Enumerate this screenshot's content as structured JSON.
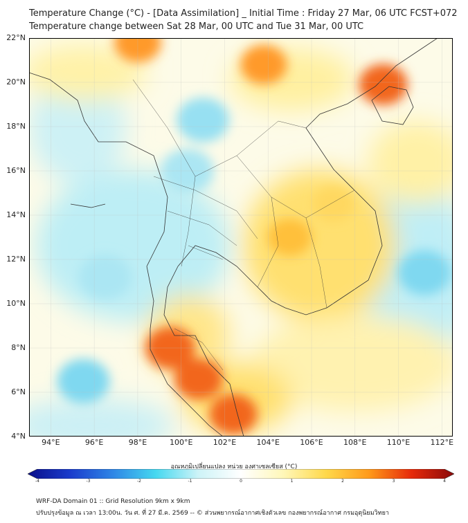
{
  "header": {
    "title_line1": "Temperature Change (°C) - [Data Assimilation] _ Initial Time : Friday 27 Mar, 06 UTC FCST+072",
    "title_line2": "Temperature change between Sat 28 Mar, 00 UTC and Tue 31 Mar, 00 UTC"
  },
  "map": {
    "lat_labels": [
      "22°N",
      "20°N",
      "18°N",
      "16°N",
      "14°N",
      "12°N",
      "10°N",
      "8°N",
      "6°N",
      "4°N"
    ],
    "lon_labels": [
      "94°E",
      "96°E",
      "98°E",
      "100°E",
      "102°E",
      "104°E",
      "106°E",
      "108°E",
      "110°E",
      "112°E"
    ],
    "lat_range": [
      4,
      22
    ],
    "lon_range": [
      93,
      112.5
    ],
    "gridlines": true,
    "field_features": [
      {
        "type": "warm",
        "lon": 99.5,
        "lat": 8.0,
        "value": 2.8
      },
      {
        "type": "warm",
        "lon": 100.8,
        "lat": 6.6,
        "value": 2.6
      },
      {
        "type": "warm",
        "lon": 102.4,
        "lat": 5.0,
        "value": 2.5
      },
      {
        "type": "warm",
        "lon": 98.0,
        "lat": 21.8,
        "value": 2.4
      },
      {
        "type": "warm",
        "lon": 103.8,
        "lat": 20.8,
        "value": 2.3
      },
      {
        "type": "warm",
        "lon": 109.3,
        "lat": 19.9,
        "value": 2.6
      },
      {
        "type": "warm",
        "lon": 105.0,
        "lat": 13.0,
        "value": 1.9
      },
      {
        "type": "warm",
        "lon": 107.0,
        "lat": 14.5,
        "value": 1.6
      },
      {
        "type": "cool",
        "lon": 100.3,
        "lat": 16.0,
        "value": -1.2
      },
      {
        "type": "cool",
        "lon": 101.0,
        "lat": 18.3,
        "value": -1.3
      },
      {
        "type": "cool",
        "lon": 96.5,
        "lat": 11.2,
        "value": -1.2
      },
      {
        "type": "cool",
        "lon": 95.5,
        "lat": 6.5,
        "value": -1.4
      },
      {
        "type": "cool",
        "lon": 111.2,
        "lat": 11.4,
        "value": -1.5
      }
    ]
  },
  "colorbar": {
    "title": "อุณหภูมิเปลี่ยนแปลง หน่วย องศาเซลเซียส (°C)",
    "tick_labels": [
      "-4",
      "-3",
      "-2",
      "-1",
      "0",
      "1",
      "2",
      "3",
      "4"
    ],
    "range": [
      -4,
      4
    ],
    "colors": [
      "#0a0f8a",
      "#1a3ccc",
      "#2f86e6",
      "#45d8f0",
      "#cdf3f7",
      "#ffffff",
      "#fff7b8",
      "#ffd84a",
      "#ff9a1a",
      "#e62a0a",
      "#8a0a0a"
    ]
  },
  "footer": {
    "line1": "WRF-DA Domain 01 :: Grid Resolution 9km x 9km",
    "line2": "ปรับปรุงข้อมูล ณ เวลา 13:00น. วัน ศ. ที่ 27 มี.ค. 2569 -- © ส่วนพยากรณ์อากาศเชิงตัวเลข กองพยากรณ์อากาศ กรมอุตุนิยมวิทยา"
  }
}
